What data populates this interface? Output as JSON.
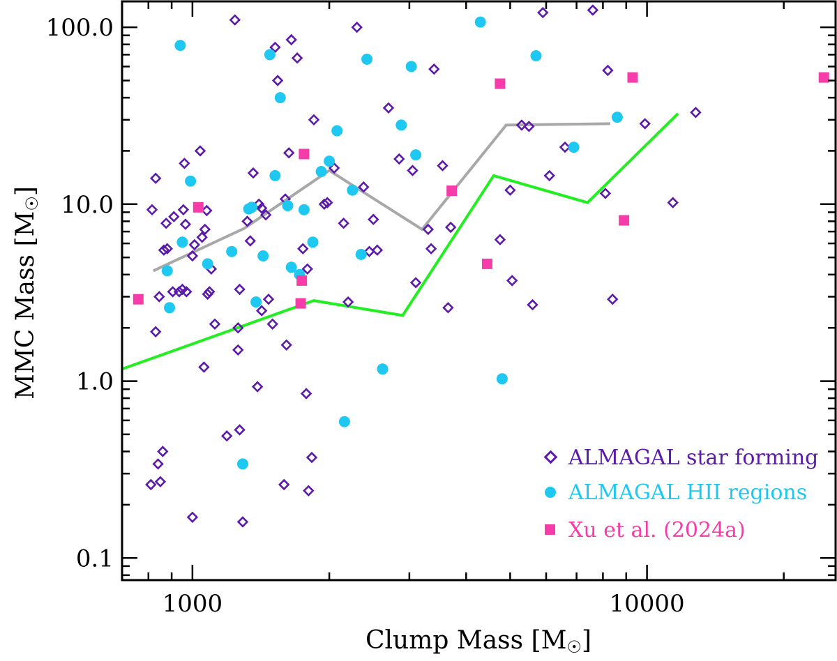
{
  "chart_data": {
    "type": "scatter",
    "x_scale": "log",
    "y_scale": "log",
    "xlim": [
      700,
      26000
    ],
    "ylim": [
      0.075,
      140
    ],
    "x_ticks": [
      {
        "value": 1000,
        "label": "1000"
      },
      {
        "value": 10000,
        "label": "10000"
      }
    ],
    "y_ticks": [
      {
        "value": 0.1,
        "label": "0.1"
      },
      {
        "value": 1.0,
        "label": "1.0"
      },
      {
        "value": 10.0,
        "label": "10.0"
      },
      {
        "value": 100.0,
        "label": "100.0"
      }
    ],
    "xlabel": {
      "main": "Clump Mass [M",
      "sub": "☉",
      "close": "]"
    },
    "ylabel": {
      "main": "MMC Mass [M",
      "sub": "☉",
      "close": "]"
    },
    "grid": false,
    "legend_position": "bottom-right",
    "series": [
      {
        "name": "ALMAGAL star forming",
        "marker": "diamond-open",
        "color": "#5b1aa8",
        "points": [
          [
            815,
            9.3
          ],
          [
            830,
            14.0
          ],
          [
            845,
            3.0
          ],
          [
            865,
            5.5
          ],
          [
            875,
            7.8
          ],
          [
            880,
            5.6
          ],
          [
            905,
            3.2
          ],
          [
            910,
            8.5
          ],
          [
            935,
            3.2
          ],
          [
            950,
            3.3
          ],
          [
            955,
            9.3
          ],
          [
            960,
            17.0
          ],
          [
            965,
            7.7
          ],
          [
            970,
            3.2
          ],
          [
            1000,
            5.1
          ],
          [
            1010,
            5.9
          ],
          [
            1040,
            20.0
          ],
          [
            1050,
            6.5
          ],
          [
            1065,
            7.2
          ],
          [
            1075,
            9.2
          ],
          [
            1080,
            3.1
          ],
          [
            1090,
            3.2
          ],
          [
            1100,
            4.3
          ],
          [
            1120,
            2.1
          ],
          [
            1240,
            110.0
          ],
          [
            1260,
            2.0
          ],
          [
            1270,
            3.3
          ],
          [
            1320,
            8.0
          ],
          [
            1340,
            6.2
          ],
          [
            1360,
            15.0
          ],
          [
            1400,
            10.0
          ],
          [
            1420,
            9.5
          ],
          [
            1450,
            8.7
          ],
          [
            1470,
            2.9
          ],
          [
            1500,
            2.1
          ],
          [
            1520,
            77.0
          ],
          [
            1540,
            50.0
          ],
          [
            1600,
            10.7
          ],
          [
            1630,
            19.5
          ],
          [
            1650,
            85.0
          ],
          [
            1700,
            67.0
          ],
          [
            1750,
            5.6
          ],
          [
            1790,
            4.3
          ],
          [
            1850,
            30.0
          ],
          [
            1950,
            10.0
          ],
          [
            1980,
            10.2
          ],
          [
            2050,
            16.0
          ],
          [
            2150,
            7.8
          ],
          [
            2200,
            2.8
          ],
          [
            2300,
            100.0
          ],
          [
            2380,
            12.5
          ],
          [
            2450,
            5.4
          ],
          [
            2500,
            8.2
          ],
          [
            2550,
            5.5
          ],
          [
            2700,
            35.0
          ],
          [
            2850,
            18.0
          ],
          [
            3050,
            15.5
          ],
          [
            3100,
            3.6
          ],
          [
            3300,
            7.2
          ],
          [
            3350,
            5.6
          ],
          [
            3400,
            58.0
          ],
          [
            3550,
            16.5
          ],
          [
            3650,
            2.6
          ],
          [
            3700,
            7.4
          ],
          [
            4750,
            6.3
          ],
          [
            5000,
            12.0
          ],
          [
            5050,
            3.7
          ],
          [
            5300,
            28.0
          ],
          [
            5500,
            27.5
          ],
          [
            5600,
            2.7
          ],
          [
            5900,
            121.0
          ],
          [
            6100,
            14.5
          ],
          [
            6600,
            21.0
          ],
          [
            7600,
            125.0
          ],
          [
            8100,
            11.5
          ],
          [
            8200,
            57.0
          ],
          [
            8400,
            2.9
          ],
          [
            9900,
            28.5
          ],
          [
            11400,
            10.2
          ],
          [
            12800,
            33.0
          ],
          [
            830,
            1.9
          ],
          [
            1060,
            1.2
          ],
          [
            1190,
            0.49
          ],
          [
            1270,
            0.53
          ],
          [
            1390,
            0.93
          ],
          [
            1260,
            1.5
          ],
          [
            1610,
            1.6
          ],
          [
            1780,
            0.85
          ],
          [
            810,
            0.26
          ],
          [
            840,
            0.34
          ],
          [
            850,
            0.27
          ],
          [
            860,
            0.4
          ],
          [
            1000,
            0.17
          ],
          [
            1290,
            0.16
          ],
          [
            1590,
            0.26
          ],
          [
            1830,
            0.37
          ],
          [
            1800,
            0.24
          ],
          [
            1420,
            2.5
          ]
        ]
      },
      {
        "name": "ALMAGAL HII regions",
        "marker": "circle",
        "color": "#1ec8f0",
        "points": [
          [
            940,
            79.0
          ],
          [
            990,
            13.5
          ],
          [
            950,
            6.1
          ],
          [
            880,
            4.2
          ],
          [
            890,
            2.6
          ],
          [
            1080,
            4.6
          ],
          [
            1220,
            5.4
          ],
          [
            1290,
            0.34
          ],
          [
            1330,
            9.4
          ],
          [
            1350,
            9.6
          ],
          [
            1380,
            2.8
          ],
          [
            1430,
            5.1
          ],
          [
            1480,
            70.0
          ],
          [
            1520,
            14.5
          ],
          [
            1560,
            40.0
          ],
          [
            1620,
            9.8
          ],
          [
            1650,
            4.4
          ],
          [
            1720,
            4.0
          ],
          [
            1760,
            9.3
          ],
          [
            1840,
            6.1
          ],
          [
            1920,
            15.3
          ],
          [
            2000,
            17.5
          ],
          [
            2080,
            26.0
          ],
          [
            2160,
            0.59
          ],
          [
            2250,
            12.0
          ],
          [
            2350,
            5.2
          ],
          [
            2420,
            66.0
          ],
          [
            2620,
            1.17
          ],
          [
            2880,
            28.0
          ],
          [
            3030,
            60.0
          ],
          [
            3100,
            19.0
          ],
          [
            4300,
            107.0
          ],
          [
            4800,
            1.03
          ],
          [
            5700,
            69.0
          ],
          [
            6900,
            21.0
          ],
          [
            8600,
            31.0
          ]
        ]
      },
      {
        "name": "Xu et al. (2024a)",
        "marker": "square",
        "color": "#f53ca8",
        "points": [
          [
            760,
            2.9
          ],
          [
            1030,
            9.6
          ],
          [
            1740,
            3.7
          ],
          [
            1760,
            19.2
          ],
          [
            1730,
            2.75
          ],
          [
            3720,
            11.9
          ],
          [
            4450,
            4.6
          ],
          [
            4750,
            48.0
          ],
          [
            8900,
            8.1
          ],
          [
            9300,
            52.0
          ],
          [
            24500,
            52.0
          ]
        ]
      },
      {
        "name": "gray-trend",
        "line": true,
        "color": "#a8a8a8",
        "points": [
          [
            820,
            4.2
          ],
          [
            1300,
            7.3
          ],
          [
            2000,
            15.5
          ],
          [
            3200,
            7.2
          ],
          [
            4900,
            28.0
          ],
          [
            8300,
            28.5
          ]
        ]
      },
      {
        "name": "green-trend",
        "line": true,
        "color": "#22ee22",
        "points": [
          [
            700,
            1.17
          ],
          [
            1850,
            2.85
          ],
          [
            2900,
            2.35
          ],
          [
            4600,
            14.5
          ],
          [
            7400,
            10.2
          ],
          [
            11700,
            32.5
          ]
        ]
      }
    ]
  }
}
